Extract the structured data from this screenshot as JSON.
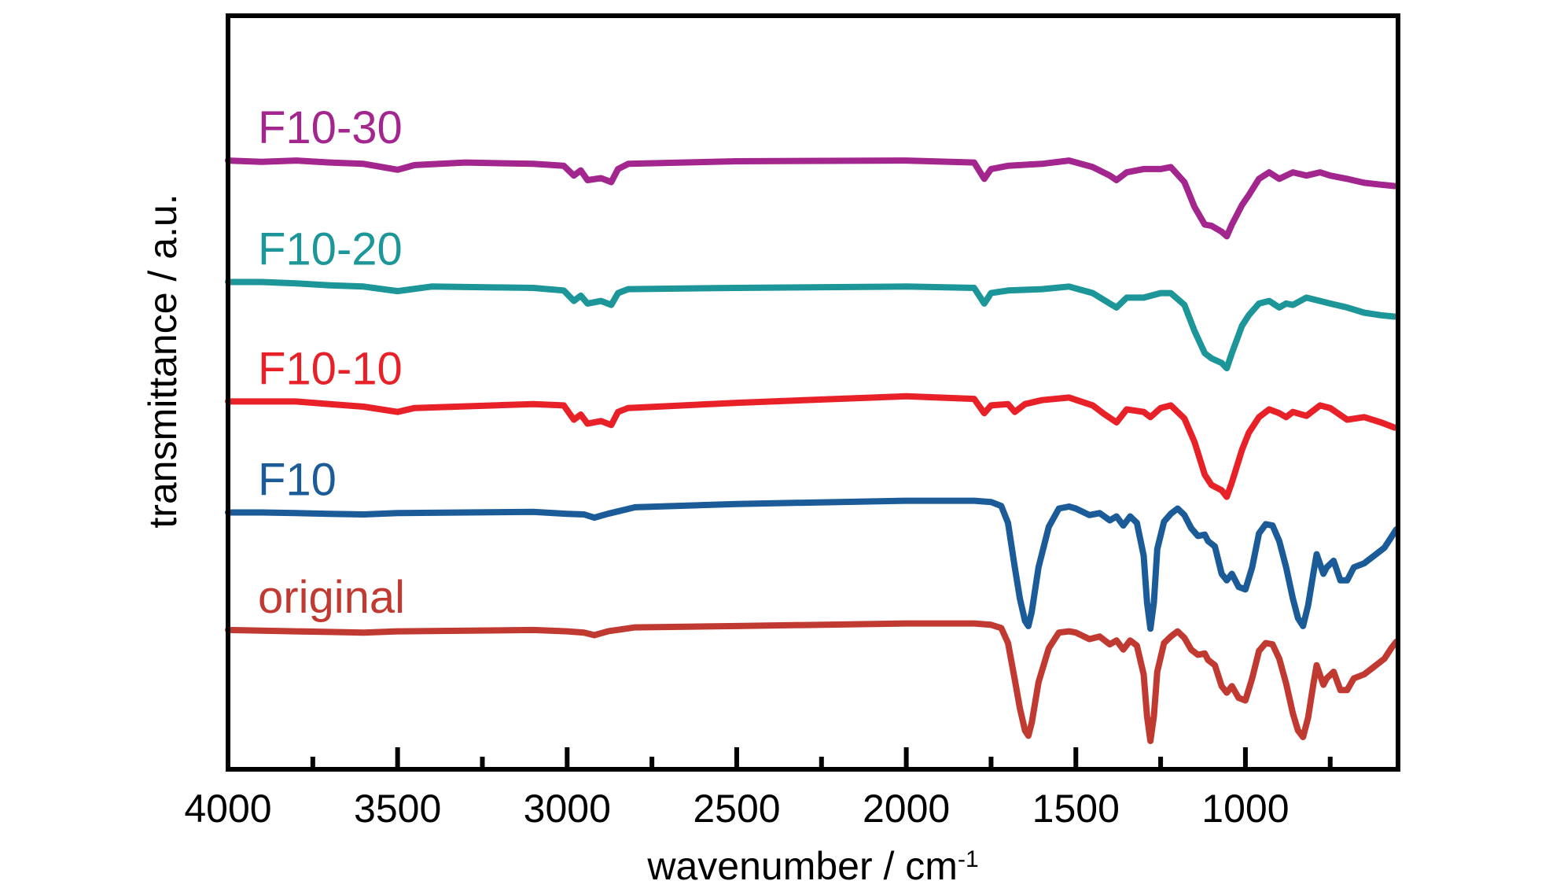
{
  "chart_data": {
    "type": "line",
    "xlabel": "wavenumber / cm",
    "xlabel_superscript": "-1",
    "ylabel": "transmittance / a.u.",
    "xlim": [
      4000,
      550
    ],
    "ylim": [
      0,
      100
    ],
    "x_reversed": true,
    "x_ticks": [
      4000,
      3500,
      3000,
      2500,
      2000,
      1500,
      1000
    ],
    "x_minor_ticks": [
      3750,
      3250,
      2750,
      2250,
      1750,
      1250,
      750
    ],
    "y_ticks_visible": false,
    "grid": false,
    "legend": "inline labels above each curve",
    "series": [
      {
        "name": "F10-30",
        "color": "#A2268E",
        "points": [
          [
            4000,
            88.9
          ],
          [
            3900,
            88.7
          ],
          [
            3800,
            88.9
          ],
          [
            3700,
            88.6
          ],
          [
            3600,
            88.4
          ],
          [
            3500,
            87.5
          ],
          [
            3450,
            88.2
          ],
          [
            3300,
            88.6
          ],
          [
            3100,
            88.4
          ],
          [
            3010,
            88.1
          ],
          [
            2980,
            86.6
          ],
          [
            2960,
            87.4
          ],
          [
            2940,
            85.9
          ],
          [
            2900,
            86.2
          ],
          [
            2870,
            85.6
          ],
          [
            2850,
            87.6
          ],
          [
            2820,
            88.4
          ],
          [
            2500,
            88.8
          ],
          [
            2000,
            88.9
          ],
          [
            1800,
            88.6
          ],
          [
            1770,
            86.1
          ],
          [
            1750,
            87.6
          ],
          [
            1700,
            88.1
          ],
          [
            1600,
            88.4
          ],
          [
            1520,
            88.9
          ],
          [
            1450,
            87.9
          ],
          [
            1400,
            86.6
          ],
          [
            1380,
            85.9
          ],
          [
            1350,
            87.1
          ],
          [
            1300,
            87.6
          ],
          [
            1250,
            87.6
          ],
          [
            1220,
            87.9
          ],
          [
            1180,
            85.6
          ],
          [
            1150,
            81.8
          ],
          [
            1120,
            79.1
          ],
          [
            1100,
            78.9
          ],
          [
            1070,
            78.0
          ],
          [
            1055,
            77.3
          ],
          [
            1040,
            79.1
          ],
          [
            1010,
            82.1
          ],
          [
            990,
            83.6
          ],
          [
            960,
            86.1
          ],
          [
            930,
            87.1
          ],
          [
            900,
            86.1
          ],
          [
            880,
            86.6
          ],
          [
            860,
            87.1
          ],
          [
            820,
            86.6
          ],
          [
            780,
            87.1
          ],
          [
            750,
            86.6
          ],
          [
            700,
            86.1
          ],
          [
            650,
            85.5
          ],
          [
            600,
            85.2
          ],
          [
            560,
            85.0
          ]
        ]
      },
      {
        "name": "F10-20",
        "color": "#1C9698",
        "points": [
          [
            4000,
            70.3
          ],
          [
            3900,
            70.3
          ],
          [
            3800,
            70.1
          ],
          [
            3700,
            69.8
          ],
          [
            3600,
            69.6
          ],
          [
            3500,
            68.9
          ],
          [
            3400,
            69.6
          ],
          [
            3100,
            69.4
          ],
          [
            3010,
            69.0
          ],
          [
            2980,
            67.4
          ],
          [
            2960,
            68.2
          ],
          [
            2940,
            67.0
          ],
          [
            2900,
            67.4
          ],
          [
            2870,
            66.8
          ],
          [
            2850,
            68.6
          ],
          [
            2820,
            69.2
          ],
          [
            2500,
            69.4
          ],
          [
            2000,
            69.6
          ],
          [
            1800,
            69.4
          ],
          [
            1770,
            67.0
          ],
          [
            1750,
            68.6
          ],
          [
            1700,
            69.0
          ],
          [
            1600,
            69.2
          ],
          [
            1520,
            69.6
          ],
          [
            1450,
            68.6
          ],
          [
            1400,
            67.0
          ],
          [
            1380,
            66.4
          ],
          [
            1350,
            67.9
          ],
          [
            1300,
            67.9
          ],
          [
            1250,
            68.6
          ],
          [
            1220,
            68.6
          ],
          [
            1180,
            66.8
          ],
          [
            1150,
            62.8
          ],
          [
            1120,
            59.4
          ],
          [
            1100,
            58.6
          ],
          [
            1070,
            57.9
          ],
          [
            1055,
            57.1
          ],
          [
            1040,
            59.4
          ],
          [
            1010,
            63.6
          ],
          [
            990,
            65.2
          ],
          [
            960,
            67.0
          ],
          [
            930,
            67.4
          ],
          [
            900,
            66.4
          ],
          [
            880,
            67.0
          ],
          [
            860,
            66.8
          ],
          [
            820,
            67.9
          ],
          [
            780,
            67.4
          ],
          [
            750,
            67.0
          ],
          [
            700,
            66.4
          ],
          [
            650,
            65.6
          ],
          [
            600,
            65.2
          ],
          [
            560,
            65.0
          ]
        ]
      },
      {
        "name": "F10-10",
        "color": "#E82129",
        "points": [
          [
            4000,
            52.0
          ],
          [
            3900,
            52.0
          ],
          [
            3800,
            52.0
          ],
          [
            3700,
            51.6
          ],
          [
            3600,
            51.2
          ],
          [
            3500,
            50.4
          ],
          [
            3450,
            51.0
          ],
          [
            3100,
            51.6
          ],
          [
            3010,
            51.4
          ],
          [
            2980,
            49.2
          ],
          [
            2960,
            50.0
          ],
          [
            2940,
            48.6
          ],
          [
            2900,
            49.0
          ],
          [
            2870,
            48.4
          ],
          [
            2850,
            50.4
          ],
          [
            2820,
            51.0
          ],
          [
            2500,
            51.8
          ],
          [
            2000,
            52.8
          ],
          [
            1800,
            52.4
          ],
          [
            1770,
            50.2
          ],
          [
            1750,
            51.4
          ],
          [
            1700,
            51.6
          ],
          [
            1680,
            50.4
          ],
          [
            1650,
            51.6
          ],
          [
            1600,
            52.2
          ],
          [
            1520,
            52.6
          ],
          [
            1450,
            51.4
          ],
          [
            1420,
            50.2
          ],
          [
            1380,
            48.8
          ],
          [
            1350,
            50.8
          ],
          [
            1300,
            50.4
          ],
          [
            1280,
            49.6
          ],
          [
            1250,
            51.0
          ],
          [
            1220,
            51.4
          ],
          [
            1180,
            49.4
          ],
          [
            1150,
            45.8
          ],
          [
            1120,
            40.8
          ],
          [
            1100,
            39.2
          ],
          [
            1070,
            38.4
          ],
          [
            1055,
            37.4
          ],
          [
            1040,
            39.6
          ],
          [
            1010,
            44.6
          ],
          [
            990,
            47.2
          ],
          [
            960,
            49.6
          ],
          [
            930,
            50.8
          ],
          [
            900,
            50.2
          ],
          [
            880,
            49.6
          ],
          [
            860,
            50.4
          ],
          [
            820,
            49.8
          ],
          [
            780,
            51.4
          ],
          [
            750,
            51.0
          ],
          [
            700,
            49.2
          ],
          [
            650,
            49.6
          ],
          [
            600,
            48.8
          ],
          [
            560,
            48.0
          ]
        ]
      },
      {
        "name": "F10",
        "color": "#1B5B98",
        "points": [
          [
            4000,
            35.0
          ],
          [
            3900,
            35.0
          ],
          [
            3800,
            34.9
          ],
          [
            3700,
            34.8
          ],
          [
            3600,
            34.7
          ],
          [
            3500,
            34.9
          ],
          [
            3100,
            35.1
          ],
          [
            3000,
            34.8
          ],
          [
            2950,
            34.7
          ],
          [
            2920,
            34.2
          ],
          [
            2880,
            34.8
          ],
          [
            2800,
            35.8
          ],
          [
            2500,
            36.3
          ],
          [
            2000,
            36.8
          ],
          [
            1800,
            36.8
          ],
          [
            1750,
            36.6
          ],
          [
            1720,
            36.0
          ],
          [
            1700,
            33.4
          ],
          [
            1680,
            26.6
          ],
          [
            1665,
            21.8
          ],
          [
            1650,
            18.4
          ],
          [
            1640,
            17.6
          ],
          [
            1630,
            19.8
          ],
          [
            1610,
            26.6
          ],
          [
            1580,
            32.8
          ],
          [
            1550,
            35.6
          ],
          [
            1520,
            35.9
          ],
          [
            1500,
            35.6
          ],
          [
            1460,
            34.6
          ],
          [
            1430,
            34.9
          ],
          [
            1400,
            33.8
          ],
          [
            1380,
            34.4
          ],
          [
            1360,
            33.0
          ],
          [
            1340,
            34.4
          ],
          [
            1320,
            33.4
          ],
          [
            1300,
            28.4
          ],
          [
            1290,
            21.2
          ],
          [
            1280,
            17.2
          ],
          [
            1270,
            21.2
          ],
          [
            1260,
            29.4
          ],
          [
            1240,
            33.6
          ],
          [
            1220,
            34.8
          ],
          [
            1200,
            35.6
          ],
          [
            1180,
            34.6
          ],
          [
            1160,
            32.6
          ],
          [
            1140,
            31.4
          ],
          [
            1120,
            31.6
          ],
          [
            1110,
            30.6
          ],
          [
            1090,
            29.8
          ],
          [
            1070,
            25.6
          ],
          [
            1055,
            24.6
          ],
          [
            1040,
            25.6
          ],
          [
            1020,
            23.6
          ],
          [
            1000,
            23.2
          ],
          [
            980,
            26.6
          ],
          [
            960,
            31.8
          ],
          [
            940,
            33.2
          ],
          [
            920,
            33.0
          ],
          [
            900,
            30.6
          ],
          [
            880,
            26.6
          ],
          [
            860,
            21.8
          ],
          [
            845,
            18.8
          ],
          [
            830,
            17.6
          ],
          [
            815,
            20.8
          ],
          [
            800,
            25.6
          ],
          [
            790,
            28.6
          ],
          [
            770,
            25.6
          ],
          [
            760,
            26.6
          ],
          [
            740,
            27.6
          ],
          [
            720,
            24.6
          ],
          [
            700,
            24.6
          ],
          [
            680,
            26.6
          ],
          [
            650,
            27.2
          ],
          [
            620,
            28.4
          ],
          [
            590,
            29.6
          ],
          [
            570,
            31.2
          ],
          [
            555,
            32.4
          ]
        ]
      },
      {
        "name": "original",
        "color": "#C13A32",
        "points": [
          [
            4000,
            17.0
          ],
          [
            3900,
            16.9
          ],
          [
            3800,
            16.8
          ],
          [
            3700,
            16.7
          ],
          [
            3600,
            16.6
          ],
          [
            3500,
            16.8
          ],
          [
            3100,
            17.0
          ],
          [
            3000,
            16.8
          ],
          [
            2950,
            16.6
          ],
          [
            2920,
            16.2
          ],
          [
            2880,
            16.8
          ],
          [
            2800,
            17.4
          ],
          [
            2500,
            17.6
          ],
          [
            2000,
            18.0
          ],
          [
            1800,
            18.0
          ],
          [
            1750,
            17.8
          ],
          [
            1720,
            17.3
          ],
          [
            1700,
            15.0
          ],
          [
            1680,
            9.4
          ],
          [
            1665,
            5.0
          ],
          [
            1650,
            1.6
          ],
          [
            1640,
            0.8
          ],
          [
            1630,
            2.8
          ],
          [
            1610,
            9.0
          ],
          [
            1580,
            14.2
          ],
          [
            1550,
            16.6
          ],
          [
            1520,
            16.8
          ],
          [
            1500,
            16.6
          ],
          [
            1460,
            15.6
          ],
          [
            1430,
            16.0
          ],
          [
            1400,
            14.8
          ],
          [
            1380,
            15.4
          ],
          [
            1360,
            14.0
          ],
          [
            1340,
            15.4
          ],
          [
            1320,
            14.6
          ],
          [
            1300,
            10.2
          ],
          [
            1290,
            3.8
          ],
          [
            1280,
            0.0
          ],
          [
            1270,
            3.8
          ],
          [
            1260,
            10.6
          ],
          [
            1240,
            15.0
          ],
          [
            1220,
            16.0
          ],
          [
            1200,
            16.8
          ],
          [
            1180,
            15.8
          ],
          [
            1160,
            14.0
          ],
          [
            1140,
            13.2
          ],
          [
            1120,
            13.4
          ],
          [
            1110,
            12.4
          ],
          [
            1090,
            11.6
          ],
          [
            1070,
            8.4
          ],
          [
            1055,
            7.4
          ],
          [
            1040,
            8.4
          ],
          [
            1020,
            6.6
          ],
          [
            1000,
            6.2
          ],
          [
            980,
            9.6
          ],
          [
            960,
            13.8
          ],
          [
            940,
            15.0
          ],
          [
            920,
            14.8
          ],
          [
            900,
            12.6
          ],
          [
            880,
            8.8
          ],
          [
            860,
            4.2
          ],
          [
            845,
            1.6
          ],
          [
            830,
            0.6
          ],
          [
            815,
            3.6
          ],
          [
            800,
            8.6
          ],
          [
            790,
            11.6
          ],
          [
            770,
            8.6
          ],
          [
            760,
            9.6
          ],
          [
            740,
            10.6
          ],
          [
            720,
            7.8
          ],
          [
            700,
            7.8
          ],
          [
            680,
            9.6
          ],
          [
            650,
            10.2
          ],
          [
            620,
            11.4
          ],
          [
            590,
            12.6
          ],
          [
            570,
            14.2
          ],
          [
            555,
            15.2
          ]
        ]
      }
    ]
  }
}
